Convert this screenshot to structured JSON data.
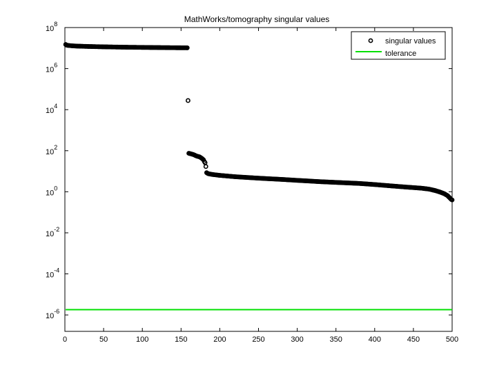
{
  "chart_data": {
    "type": "scatter",
    "title": "MathWorks/tomography singular values",
    "xlabel": "",
    "ylabel": "",
    "xlim": [
      0,
      500
    ],
    "ylim_log10": [
      -6.8,
      8
    ],
    "yscale": "log",
    "grid": false,
    "legend_position": "top-right",
    "x_ticks": [
      0,
      50,
      100,
      150,
      200,
      250,
      300,
      350,
      400,
      450,
      500
    ],
    "y_ticks": [
      {
        "exponent": -6,
        "base": "10",
        "sup": "-6"
      },
      {
        "exponent": -4,
        "base": "10",
        "sup": "-4"
      },
      {
        "exponent": -2,
        "base": "10",
        "sup": "-2"
      },
      {
        "exponent": 0,
        "base": "10",
        "sup": "0"
      },
      {
        "exponent": 2,
        "base": "10",
        "sup": "2"
      },
      {
        "exponent": 4,
        "base": "10",
        "sup": "4"
      },
      {
        "exponent": 6,
        "base": "10",
        "sup": "6"
      },
      {
        "exponent": 8,
        "base": "10",
        "sup": "8"
      }
    ],
    "series": [
      {
        "name": "singular values",
        "style": "markers",
        "color": "#000000",
        "points": [
          [
            1,
            15000000
          ],
          [
            2,
            14000000
          ],
          [
            4,
            13500000
          ],
          [
            8,
            13000000
          ],
          [
            15,
            12500000
          ],
          [
            30,
            12000000
          ],
          [
            50,
            11500000
          ],
          [
            80,
            11000000
          ],
          [
            100,
            10800000
          ],
          [
            130,
            10500000
          ],
          [
            158,
            10300000
          ],
          [
            160,
            75
          ],
          [
            163,
            70
          ],
          [
            166,
            65
          ],
          [
            170,
            55
          ],
          [
            174,
            50
          ],
          [
            177,
            42
          ],
          [
            179,
            36
          ],
          [
            180,
            30
          ],
          [
            181,
            26
          ],
          [
            182,
            17
          ],
          [
            183,
            8.5
          ],
          [
            185,
            7.6
          ],
          [
            190,
            7.0
          ],
          [
            200,
            6.3
          ],
          [
            220,
            5.4
          ],
          [
            250,
            4.6
          ],
          [
            280,
            4.0
          ],
          [
            300,
            3.6
          ],
          [
            330,
            3.1
          ],
          [
            360,
            2.75
          ],
          [
            380,
            2.55
          ],
          [
            400,
            2.25
          ],
          [
            420,
            1.95
          ],
          [
            440,
            1.7
          ],
          [
            460,
            1.5
          ],
          [
            470,
            1.35
          ],
          [
            478,
            1.15
          ],
          [
            485,
            0.95
          ],
          [
            490,
            0.8
          ],
          [
            494,
            0.65
          ],
          [
            497,
            0.5
          ],
          [
            499,
            0.42
          ],
          [
            500,
            0.4
          ]
        ]
      },
      {
        "name": "tolerance",
        "style": "line",
        "color": "#00e000",
        "points": [
          [
            1,
            1.8e-06
          ],
          [
            500,
            1.8e-06
          ]
        ]
      }
    ]
  }
}
